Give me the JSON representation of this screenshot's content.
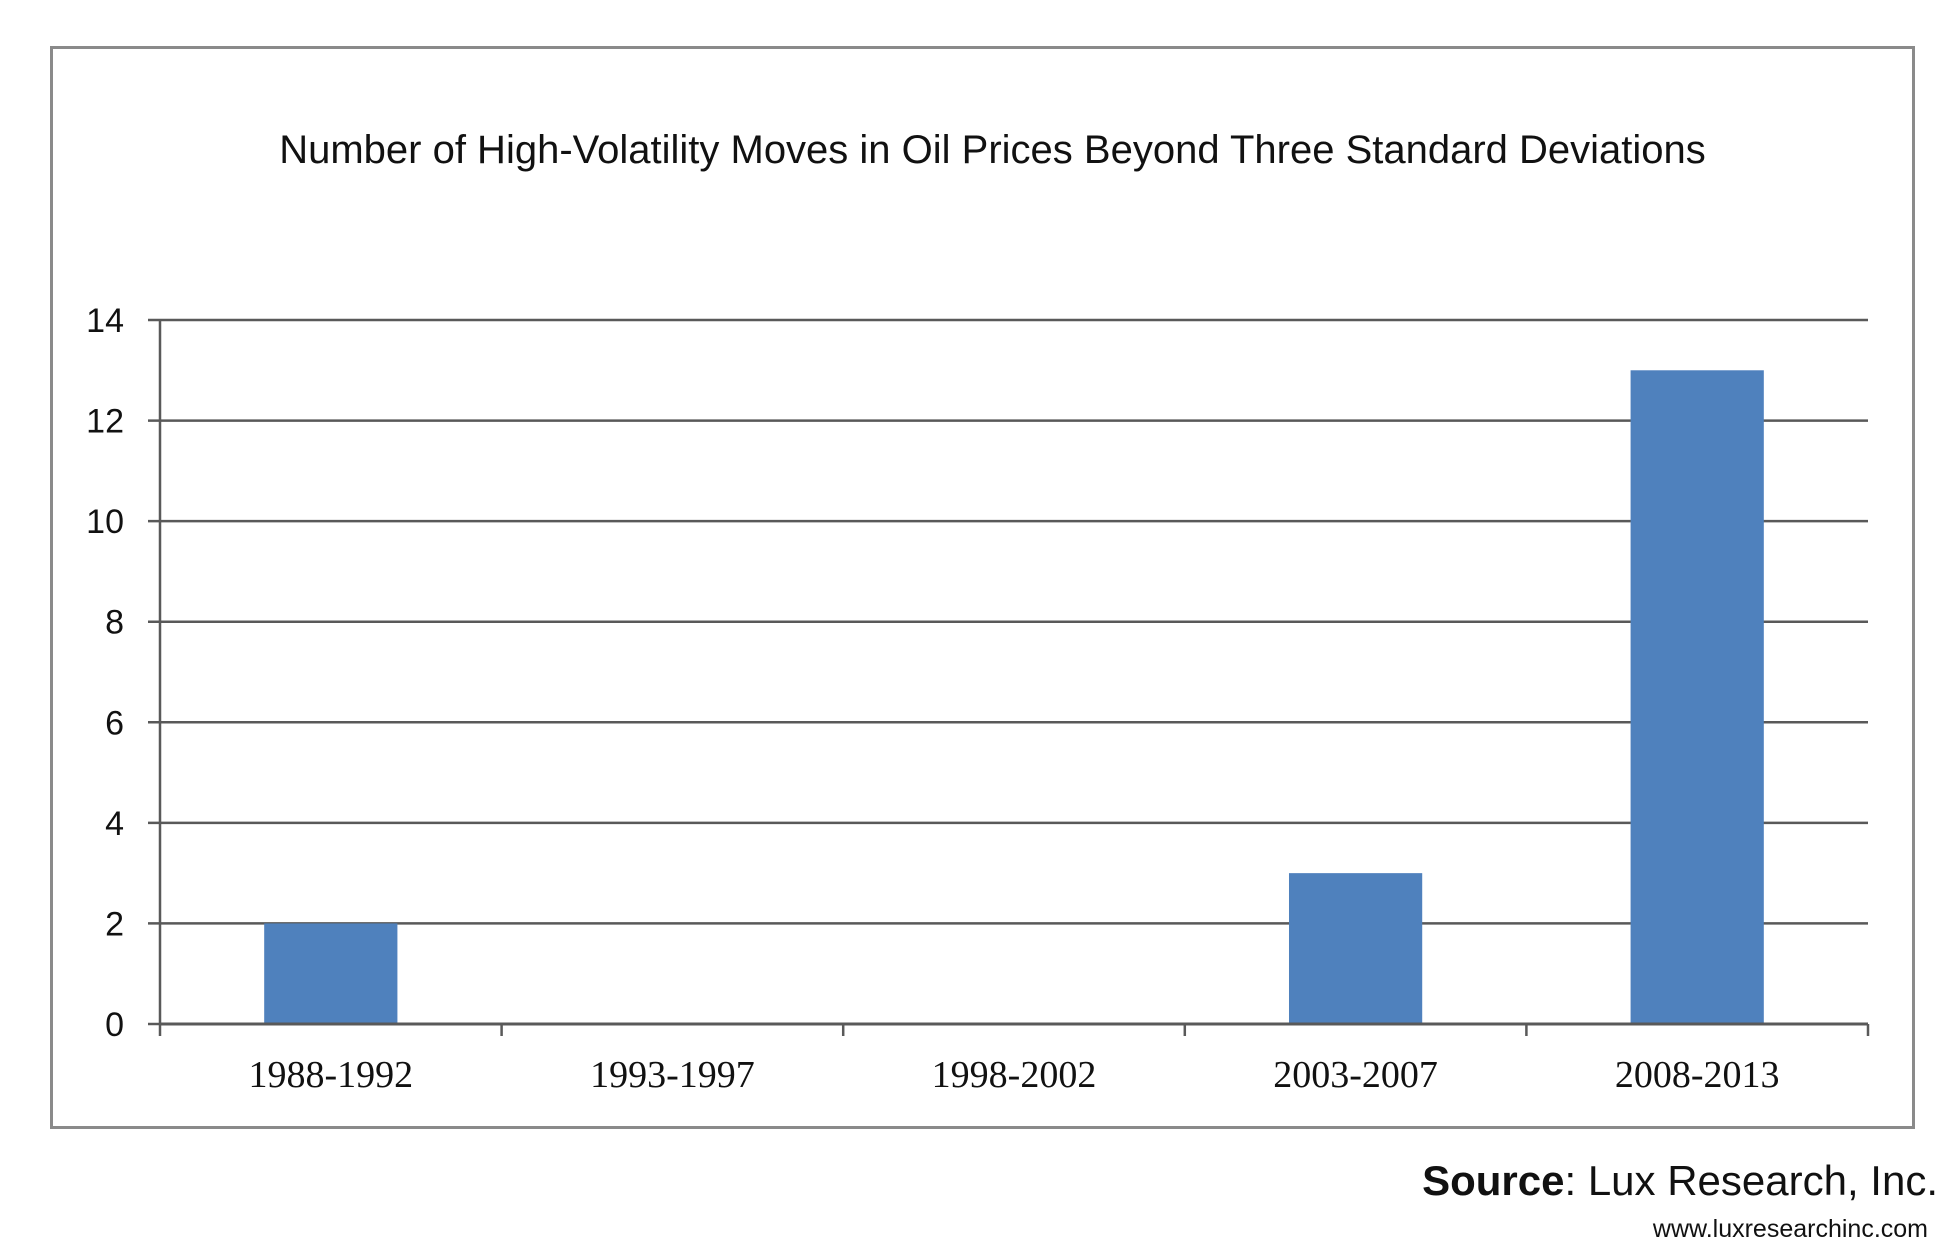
{
  "chart_data": {
    "type": "bar",
    "title": "Number of High-Volatility Moves in Oil Prices Beyond Three Standard Deviations",
    "categories": [
      "1988-1992",
      "1993-1997",
      "1998-2002",
      "2003-2007",
      "2008-2013"
    ],
    "values": [
      2,
      0,
      0,
      3,
      13
    ],
    "xlabel": "",
    "ylabel": "",
    "ylim": [
      0,
      14
    ],
    "yticks": [
      0,
      2,
      4,
      6,
      8,
      10,
      12,
      14
    ],
    "grid": true,
    "legend": "none",
    "bar_color": "#4f81bd",
    "gridline_color": "#595959"
  },
  "source": {
    "label": "Source",
    "separator": ":",
    "name": " Lux Research, Inc.",
    "url": "www.luxresearchinc.com"
  }
}
